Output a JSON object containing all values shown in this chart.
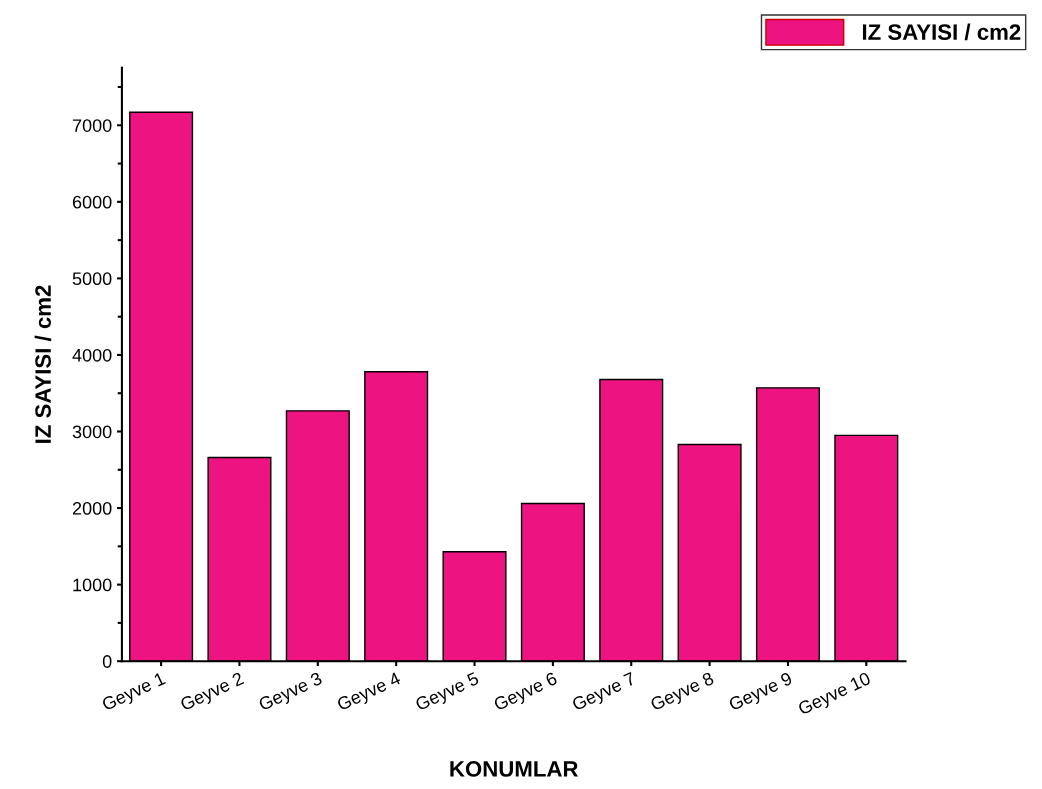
{
  "chart_data": {
    "type": "bar",
    "xlabel": "KONUMLAR",
    "ylabel": "IZ SAYISI / cm2",
    "categories": [
      "Geyve 1",
      "Geyve 2",
      "Geyve 3",
      "Geyve 4",
      "Geyve 5",
      "Geyve 6",
      "Geyve 7",
      "Geyve 8",
      "Geyve 9",
      "Geyve 10"
    ],
    "series": [
      {
        "name": "IZ SAYISI / cm2",
        "color": "#ed1380",
        "values": [
          7170,
          2660,
          3270,
          3780,
          1430,
          2060,
          3680,
          2830,
          3570,
          2950
        ]
      }
    ],
    "ylim": [
      0,
      7750
    ],
    "yticks": [
      0,
      1000,
      2000,
      3000,
      4000,
      5000,
      6000,
      7000
    ],
    "grid": false,
    "legend": "top right"
  }
}
